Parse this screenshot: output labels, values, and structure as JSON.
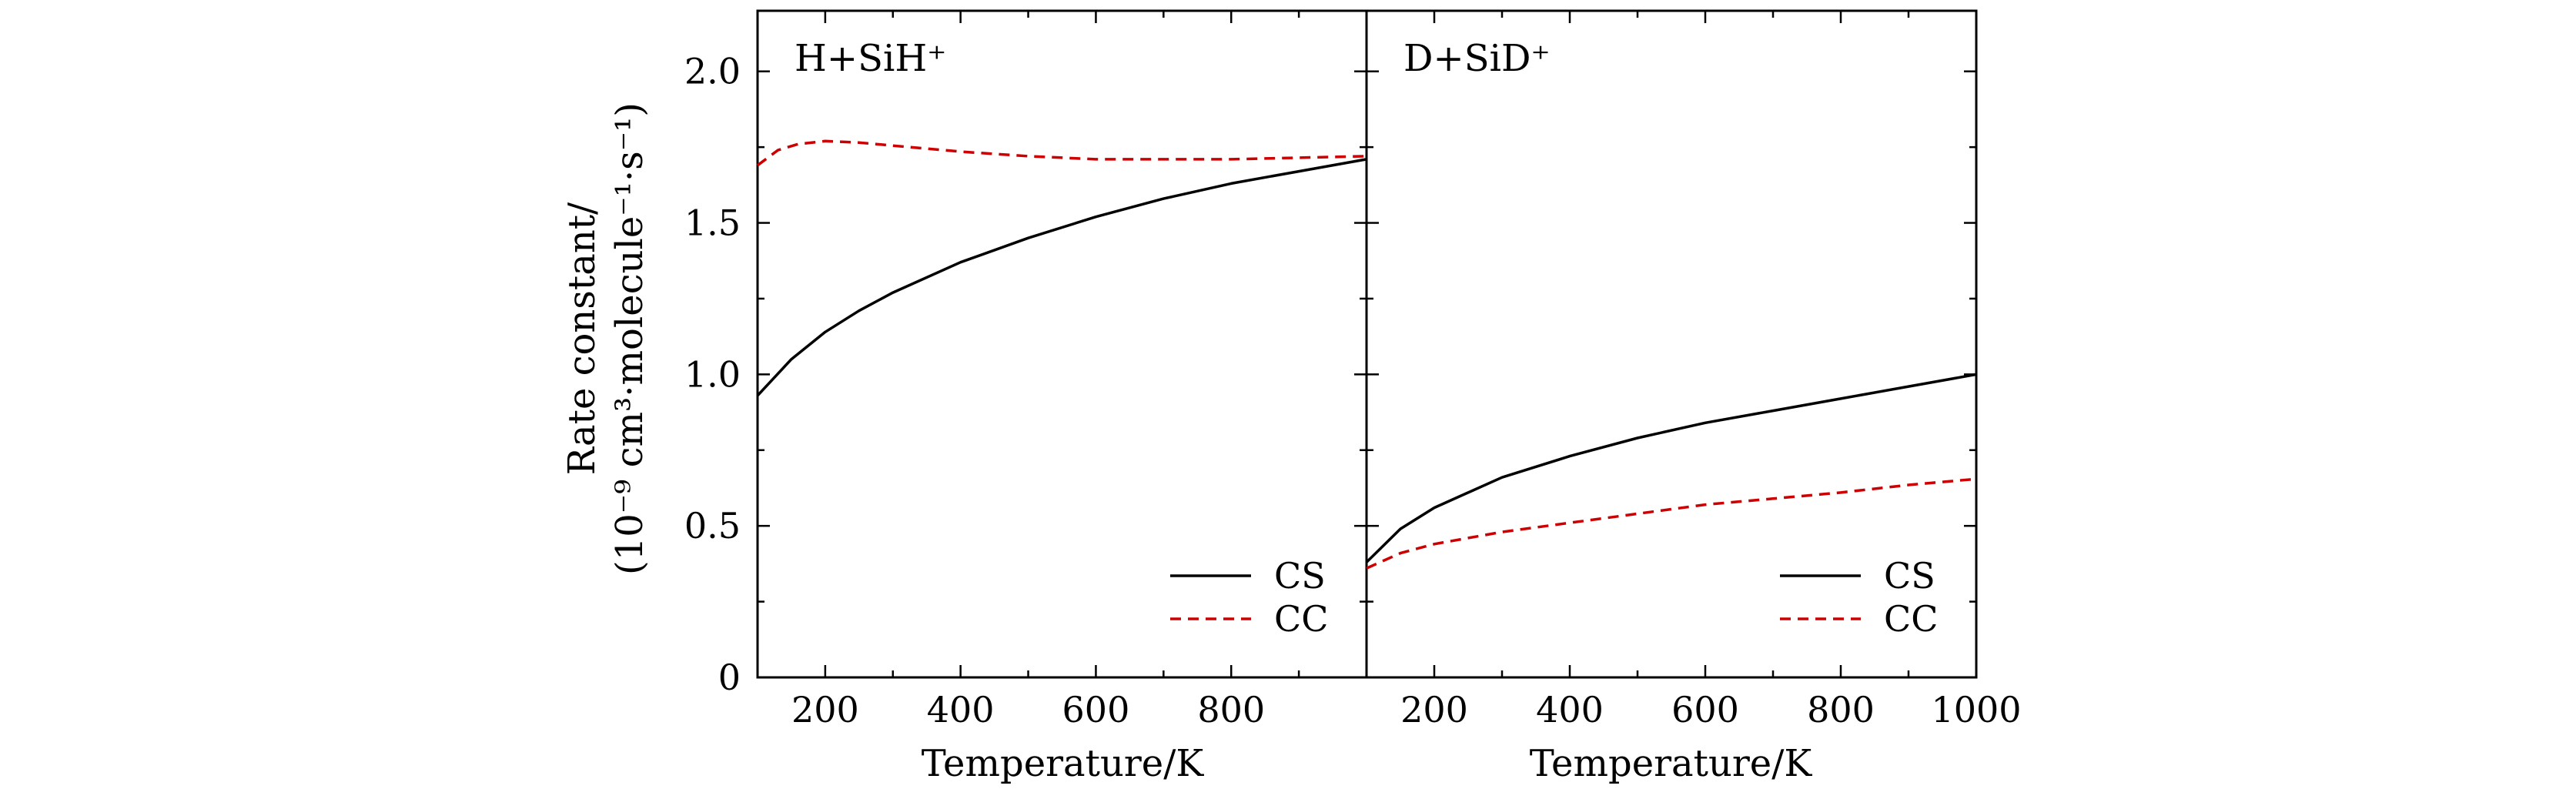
{
  "chart_data": [
    {
      "type": "line",
      "panel_label": "H+SiH⁺",
      "xlabel": "Temperature/K",
      "ylabel_line1": "Rate constant/",
      "ylabel_line2": "(10⁻⁹ cm³·molecule⁻¹·s⁻¹)",
      "xlim": [
        100,
        1000
      ],
      "ylim": [
        0,
        2.2
      ],
      "x_ticks": [
        200,
        400,
        600,
        800
      ],
      "x_tick_labels": [
        "200",
        "400",
        "600",
        "800"
      ],
      "y_ticks": [
        0,
        0.5,
        1.0,
        1.5,
        2.0
      ],
      "y_tick_labels": [
        "0",
        "0.5",
        "1.0",
        "1.5",
        "2.0"
      ],
      "legend": [
        "CS",
        "CC"
      ],
      "legend_position": "bottom-right",
      "series": [
        {
          "name": "CS",
          "color": "#000000",
          "dash": "solid",
          "x": [
            100,
            150,
            200,
            250,
            300,
            400,
            500,
            600,
            700,
            800,
            900,
            1000
          ],
          "y": [
            0.93,
            1.05,
            1.14,
            1.21,
            1.27,
            1.37,
            1.45,
            1.52,
            1.58,
            1.63,
            1.67,
            1.71
          ]
        },
        {
          "name": "CC",
          "color": "#cc0000",
          "dash": "dashed",
          "x": [
            100,
            130,
            160,
            200,
            250,
            300,
            400,
            500,
            600,
            700,
            800,
            900,
            1000
          ],
          "y": [
            1.69,
            1.74,
            1.76,
            1.77,
            1.765,
            1.755,
            1.735,
            1.72,
            1.71,
            1.71,
            1.71,
            1.715,
            1.72
          ]
        }
      ]
    },
    {
      "type": "line",
      "panel_label": "D+SiD⁺",
      "xlabel": "Temperature/K",
      "xlim": [
        100,
        1000
      ],
      "ylim": [
        0,
        2.2
      ],
      "x_ticks": [
        200,
        400,
        600,
        800,
        1000
      ],
      "x_tick_labels": [
        "200",
        "400",
        "600",
        "800",
        "1000"
      ],
      "legend": [
        "CS",
        "CC"
      ],
      "legend_position": "bottom-right",
      "series": [
        {
          "name": "CS",
          "color": "#000000",
          "dash": "solid",
          "x": [
            100,
            150,
            200,
            300,
            400,
            500,
            600,
            700,
            800,
            900,
            1000
          ],
          "y": [
            0.38,
            0.49,
            0.56,
            0.66,
            0.73,
            0.79,
            0.84,
            0.88,
            0.92,
            0.96,
            1.0
          ]
        },
        {
          "name": "CC",
          "color": "#cc0000",
          "dash": "dashed",
          "x": [
            100,
            150,
            200,
            300,
            400,
            500,
            600,
            700,
            800,
            900,
            1000
          ],
          "y": [
            0.36,
            0.41,
            0.44,
            0.48,
            0.51,
            0.54,
            0.57,
            0.59,
            0.61,
            0.635,
            0.655
          ]
        }
      ]
    }
  ]
}
